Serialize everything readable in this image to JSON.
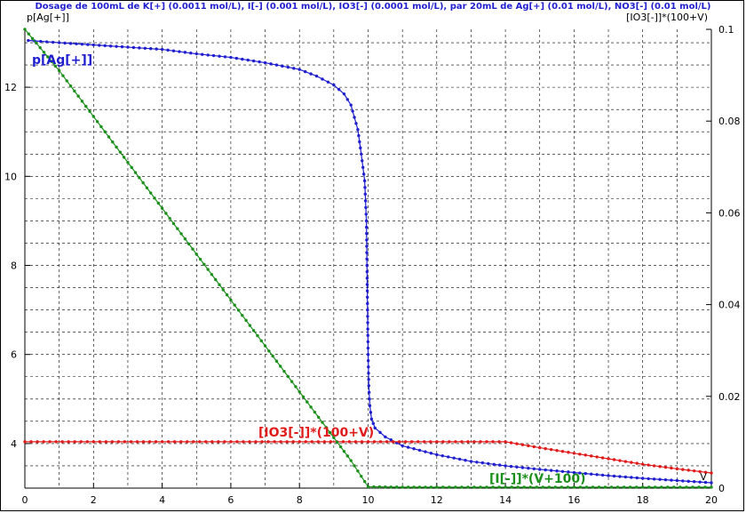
{
  "chart_data": {
    "type": "line",
    "title": "Dosage de 100mL de K[+] (0.0011 mol/L), I[-] (0.001 mol/L), IO3[-] (0.0001 mol/L),  par 20mL  de Ag[+] (0.01 mol/L), NO3[-] (0.01 mol/L)",
    "xlabel": "V",
    "ylabel_left": "p[Ag[+]]",
    "ylabel_right": "[IO3[-]]*(100+V)",
    "xlim": [
      0,
      20
    ],
    "ylim_left": [
      3,
      13.3
    ],
    "ylim_right": [
      0,
      0.1
    ],
    "x_ticks": [
      0,
      2,
      4,
      6,
      8,
      10,
      12,
      14,
      16,
      18,
      20
    ],
    "y_left_ticks": [
      4,
      6,
      8,
      10,
      12
    ],
    "y_right_ticks": [
      0,
      0.02,
      0.04,
      0.06,
      0.08,
      0.1
    ],
    "grid": true,
    "series": [
      {
        "name": "p[Ag[+]]",
        "axis": "left",
        "color": "#1f1fcf",
        "x": [
          0.1,
          1,
          2,
          3,
          4,
          5,
          6,
          7,
          8,
          8.5,
          9,
          9.3,
          9.5,
          9.7,
          9.8,
          9.9,
          9.95,
          10,
          10.02,
          10.05,
          10.1,
          10.2,
          10.5,
          11,
          12,
          13,
          14,
          15,
          16,
          17,
          18,
          19,
          20
        ],
        "y": [
          13.05,
          13.0,
          12.95,
          12.9,
          12.85,
          12.75,
          12.67,
          12.55,
          12.4,
          12.25,
          12.05,
          11.85,
          11.6,
          11.05,
          10.5,
          9.9,
          9.0,
          6.0,
          5.3,
          4.85,
          4.55,
          4.35,
          4.15,
          3.95,
          3.75,
          3.6,
          3.5,
          3.42,
          3.35,
          3.28,
          3.22,
          3.17,
          3.12
        ]
      },
      {
        "name": "[IO3[-]]*(100+V)",
        "axis": "right",
        "color": "#e01b1b",
        "x": [
          0,
          2,
          4,
          6,
          8,
          10,
          12,
          14,
          15,
          16,
          17,
          18,
          19,
          20
        ],
        "y": [
          0.0101,
          0.0101,
          0.0101,
          0.0101,
          0.0101,
          0.0101,
          0.0101,
          0.0101,
          0.0088,
          0.0076,
          0.0064,
          0.0052,
          0.0042,
          0.0033
        ]
      },
      {
        "name": "[I[-]]*(V+100)",
        "axis": "right",
        "color": "#1a8f1a",
        "x": [
          0,
          1,
          2,
          3,
          4,
          5,
          6,
          7,
          8,
          9,
          9.5,
          10,
          11,
          12,
          14,
          16,
          18,
          20
        ],
        "y": [
          0.1,
          0.091,
          0.081,
          0.071,
          0.061,
          0.051,
          0.041,
          0.031,
          0.021,
          0.011,
          0.006,
          0.0003,
          0.0002,
          0.0002,
          0.0002,
          0.0002,
          0.0002,
          0.0002
        ]
      }
    ],
    "annotations": [
      {
        "text": "p[Ag[+]]",
        "color": "#1f1fcf"
      },
      {
        "text": "[IO3[-]]*(100+V)",
        "color": "#e01b1b"
      },
      {
        "text": "[I[-]]*(V+100)",
        "color": "#1a8f1a"
      }
    ]
  }
}
